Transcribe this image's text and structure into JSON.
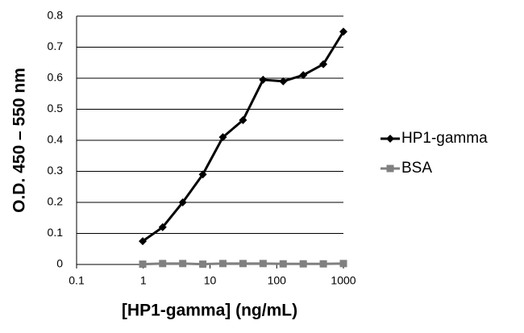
{
  "chart_data": {
    "type": "line",
    "x_label": "[HP1-gamma] (ng/mL)",
    "y_label": "O.D. 450 – 550 nm",
    "x": [
      0.98,
      1.95,
      3.9,
      7.8,
      15.6,
      31.25,
      62.5,
      125,
      250,
      500,
      1000
    ],
    "series": [
      {
        "name": "HP1-gamma",
        "color": "#000000",
        "marker": "diamond",
        "values": [
          0.075,
          0.12,
          0.2,
          0.29,
          0.41,
          0.465,
          0.595,
          0.59,
          0.61,
          0.645,
          0.75
        ]
      },
      {
        "name": "BSA",
        "color": "#808080",
        "marker": "square",
        "values": [
          0.001,
          0.003,
          0.003,
          0.001,
          0.003,
          0.003,
          0.003,
          0.002,
          0.002,
          0.002,
          0.003
        ]
      }
    ],
    "xscale": "log",
    "xlim": [
      0.1,
      1000
    ],
    "xticks": [
      0.1,
      1,
      10,
      100,
      1000
    ],
    "ylim": [
      0,
      0.8
    ],
    "yticks": [
      0,
      0.1,
      0.2,
      0.3,
      0.4,
      0.5,
      0.6,
      0.7,
      0.8
    ],
    "grid": true,
    "legend": "right"
  }
}
